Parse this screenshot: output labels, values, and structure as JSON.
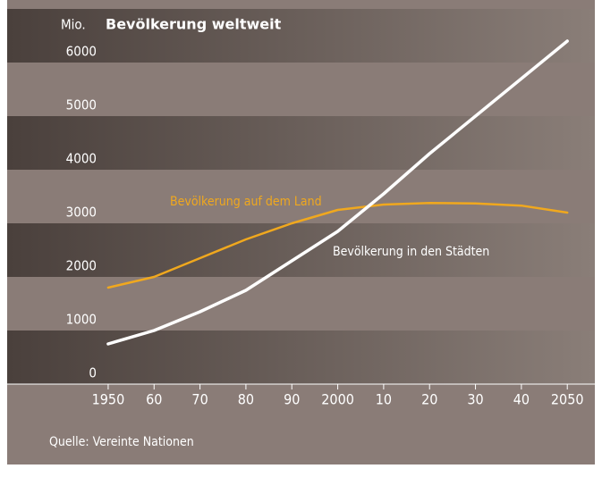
{
  "chart_data": {
    "type": "line",
    "title": "Bevölkerung weltweit",
    "y_label": "Mio.",
    "source": "Quelle: Vereinte Nationen",
    "x": [
      1950,
      1960,
      1970,
      1980,
      1990,
      2000,
      2010,
      2020,
      2030,
      2040,
      2050
    ],
    "series": [
      {
        "name": "Bevölkerung auf dem Land",
        "color": "#f0a81e",
        "values": [
          1800,
          2000,
          2350,
          2700,
          3000,
          3250,
          3350,
          3380,
          3370,
          3330,
          3200
        ]
      },
      {
        "name": "Bevölkerung in den Städten",
        "color": "#ffffff",
        "values": [
          750,
          1000,
          1350,
          1750,
          2300,
          2850,
          3550,
          4300,
          5000,
          5700,
          6400
        ]
      }
    ],
    "xlim": [
      1928,
      2056
    ],
    "xticks": [
      {
        "value": 1950,
        "label": "1950"
      },
      {
        "value": 1960,
        "label": "60"
      },
      {
        "value": 1970,
        "label": "70"
      },
      {
        "value": 1980,
        "label": "80"
      },
      {
        "value": 1990,
        "label": "90"
      },
      {
        "value": 2000,
        "label": "2000"
      },
      {
        "value": 2010,
        "label": "10"
      },
      {
        "value": 2020,
        "label": "20"
      },
      {
        "value": 2030,
        "label": "30"
      },
      {
        "value": 2040,
        "label": "40"
      },
      {
        "value": 2050,
        "label": "2050"
      }
    ],
    "ylim": [
      0,
      7000
    ],
    "yticks": [
      0,
      1000,
      2000,
      3000,
      4000,
      5000,
      6000,
      7000
    ]
  }
}
